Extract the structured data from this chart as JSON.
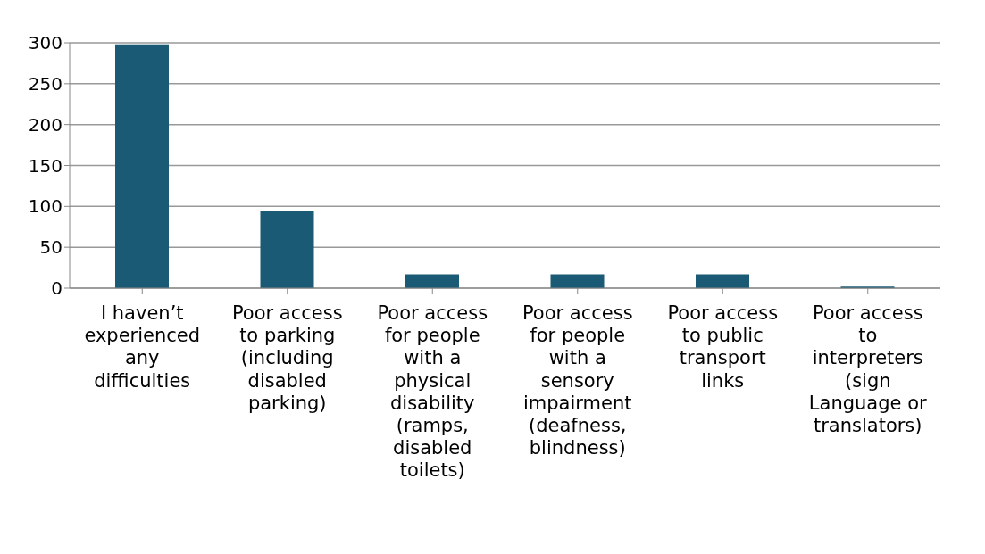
{
  "chart_data": {
    "type": "bar",
    "categories": [
      "I haven’t experienced any difficulties",
      "Poor access to parking (including disabled parking)",
      "Poor access for people with a physical disability (ramps, disabled toilets)",
      "Poor access for people with a sensory impairment (deafness, blindness)",
      "Poor access to public transport links",
      "Poor access to interpreters (sign Language or translators)"
    ],
    "values": [
      298,
      95,
      17,
      17,
      17,
      2
    ],
    "color": "#1b5a74",
    "ylim": [
      0,
      300
    ],
    "yticks": [
      0,
      50,
      100,
      150,
      200,
      250,
      300
    ],
    "grid": "y"
  }
}
